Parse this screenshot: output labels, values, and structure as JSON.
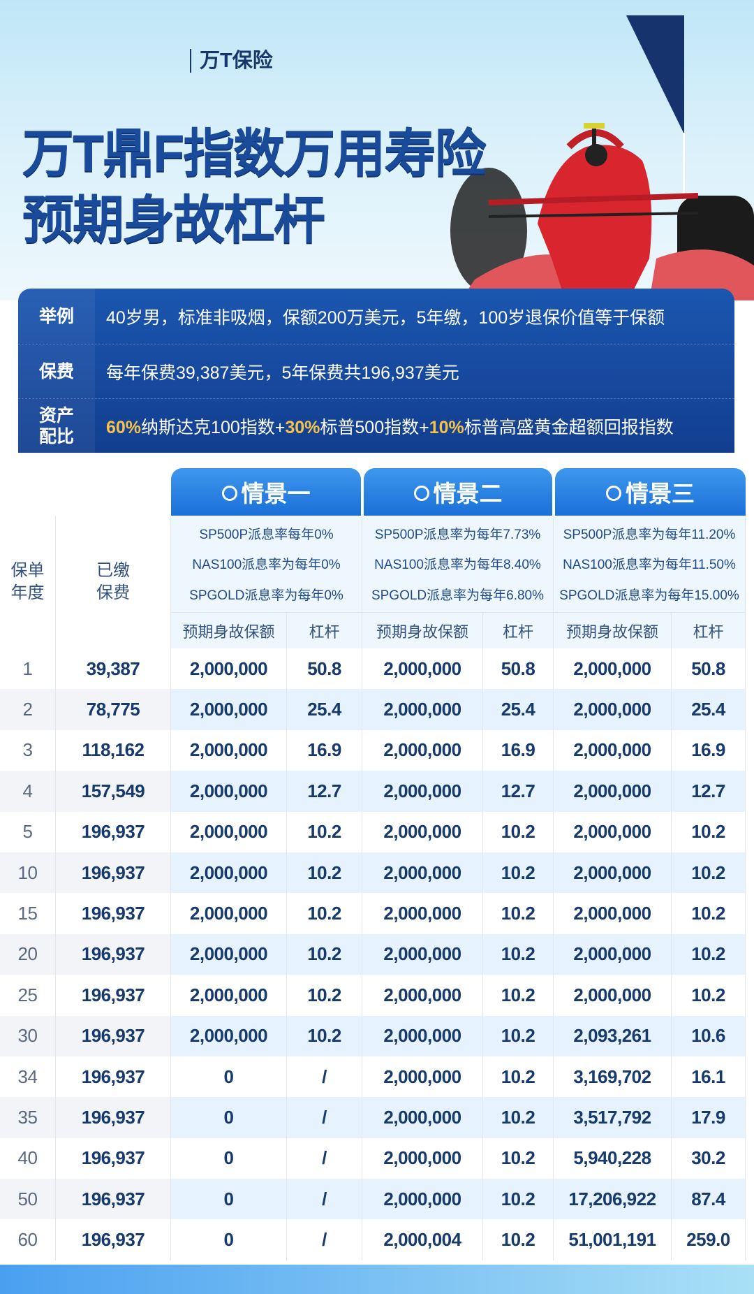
{
  "brand": "万T保险",
  "title_line1": "万T鼎F指数万用寿险",
  "title_line2": "预期身故杠杆",
  "colors": {
    "navy": "#123e8f",
    "accent": "#1b6fd8",
    "gold": "#f5c24a",
    "car": "#d9262e"
  },
  "info": {
    "example_label": "举例",
    "example_value": "40岁男，标准非吸烟，保额200万美元，5年缴，100岁退保价值等于保额",
    "premium_label": "保费",
    "premium_value": "每年保费39,387美元，5年保费共196,937美元",
    "allocation_label_1": "资产",
    "allocation_label_2": "配比",
    "allocation": [
      {
        "pct": "60%",
        "name": "纳斯达克100指数+"
      },
      {
        "pct": "30%",
        "name": "标普500指数+"
      },
      {
        "pct": "10%",
        "name": "标普高盛黄金超额回报指数"
      }
    ]
  },
  "table": {
    "year_header": "保单年度",
    "year_header_1": "保单",
    "year_header_2": "年度",
    "paid_header_1": "已缴",
    "paid_header_2": "保费",
    "scenarios": [
      {
        "name": "情景一",
        "rates": [
          "SP500P派息率每年0%",
          "NAS100派息率为每年0%",
          "SPGOLD派息率为每年0%"
        ],
        "col_amount": "预期身故保额",
        "col_leverage": "杠杆"
      },
      {
        "name": "情景二",
        "rates": [
          "SP500P派息率为每年7.73%",
          "NAS100派息率为每年8.40%",
          "SPGOLD派息率为每年6.80%"
        ],
        "col_amount": "预期身故保额",
        "col_leverage": "杠杆"
      },
      {
        "name": "情景三",
        "rates": [
          "SP500P派息率为每年11.20%",
          "NAS100派息率为每年11.50%",
          "SPGOLD派息率为每年15.00%"
        ],
        "col_amount": "预期身故保额",
        "col_leverage": "杠杆"
      }
    ],
    "rows": [
      [
        "1",
        "39,387",
        "2,000,000",
        "50.8",
        "2,000,000",
        "50.8",
        "2,000,000",
        "50.8"
      ],
      [
        "2",
        "78,775",
        "2,000,000",
        "25.4",
        "2,000,000",
        "25.4",
        "2,000,000",
        "25.4"
      ],
      [
        "3",
        "118,162",
        "2,000,000",
        "16.9",
        "2,000,000",
        "16.9",
        "2,000,000",
        "16.9"
      ],
      [
        "4",
        "157,549",
        "2,000,000",
        "12.7",
        "2,000,000",
        "12.7",
        "2,000,000",
        "12.7"
      ],
      [
        "5",
        "196,937",
        "2,000,000",
        "10.2",
        "2,000,000",
        "10.2",
        "2,000,000",
        "10.2"
      ],
      [
        "10",
        "196,937",
        "2,000,000",
        "10.2",
        "2,000,000",
        "10.2",
        "2,000,000",
        "10.2"
      ],
      [
        "15",
        "196,937",
        "2,000,000",
        "10.2",
        "2,000,000",
        "10.2",
        "2,000,000",
        "10.2"
      ],
      [
        "20",
        "196,937",
        "2,000,000",
        "10.2",
        "2,000,000",
        "10.2",
        "2,000,000",
        "10.2"
      ],
      [
        "25",
        "196,937",
        "2,000,000",
        "10.2",
        "2,000,000",
        "10.2",
        "2,000,000",
        "10.2"
      ],
      [
        "30",
        "196,937",
        "2,000,000",
        "10.2",
        "2,000,000",
        "10.2",
        "2,093,261",
        "10.6"
      ],
      [
        "34",
        "196,937",
        "0",
        "/",
        "2,000,000",
        "10.2",
        "3,169,702",
        "16.1"
      ],
      [
        "35",
        "196,937",
        "0",
        "/",
        "2,000,000",
        "10.2",
        "3,517,792",
        "17.9"
      ],
      [
        "40",
        "196,937",
        "0",
        "/",
        "2,000,000",
        "10.2",
        "5,940,228",
        "30.2"
      ],
      [
        "50",
        "196,937",
        "0",
        "/",
        "2,000,000",
        "10.2",
        "17,206,922",
        "87.4"
      ],
      [
        "60",
        "196,937",
        "0",
        "/",
        "2,000,004",
        "10.2",
        "51,001,191",
        "259.0"
      ]
    ]
  }
}
